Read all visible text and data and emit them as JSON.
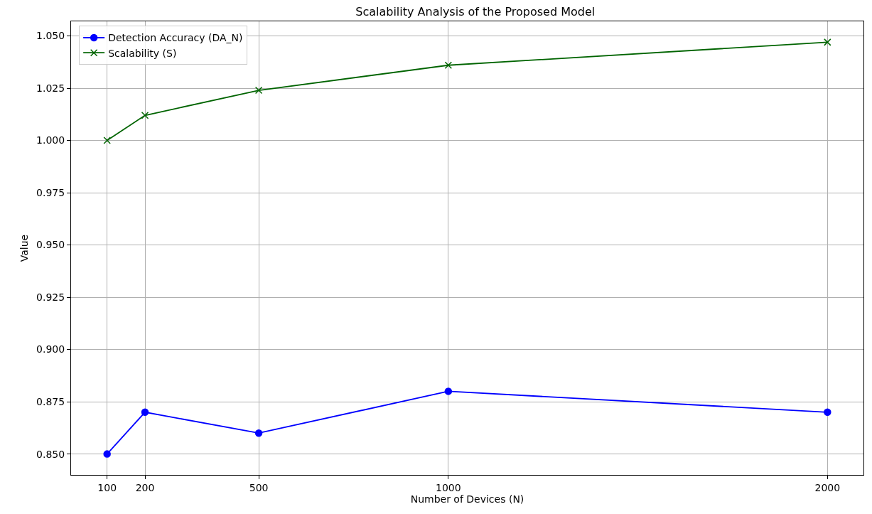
{
  "chart_data": {
    "type": "line",
    "title": "Scalability Analysis of the Proposed Model",
    "xlabel": "Number of Devices (N)",
    "ylabel": "Value",
    "x": [
      100,
      200,
      500,
      1000,
      2000
    ],
    "series": [
      {
        "name": "Detection Accuracy (DA_N)",
        "color": "#0000ff",
        "marker": "circle",
        "values": [
          0.85,
          0.87,
          0.86,
          0.88,
          0.87
        ]
      },
      {
        "name": "Scalability (S)",
        "color": "#006400",
        "marker": "cross",
        "values": [
          1.0,
          1.012,
          1.024,
          1.036,
          1.047
        ]
      }
    ],
    "xlim": [
      5,
      2095
    ],
    "xticks": [
      100,
      200,
      500,
      1000,
      2000
    ],
    "ylim": [
      0.84,
      1.057
    ],
    "yticks": [
      {
        "value": 0.85,
        "label": "0.850"
      },
      {
        "value": 0.875,
        "label": "0.875"
      },
      {
        "value": 0.9,
        "label": "0.900"
      },
      {
        "value": 0.925,
        "label": "0.925"
      },
      {
        "value": 0.95,
        "label": "0.950"
      },
      {
        "value": 0.975,
        "label": "0.975"
      },
      {
        "value": 1.0,
        "label": "1.000"
      },
      {
        "value": 1.025,
        "label": "1.025"
      },
      {
        "value": 1.05,
        "label": "1.050"
      }
    ],
    "grid": true,
    "legend": "top left",
    "line_style": "solid"
  }
}
